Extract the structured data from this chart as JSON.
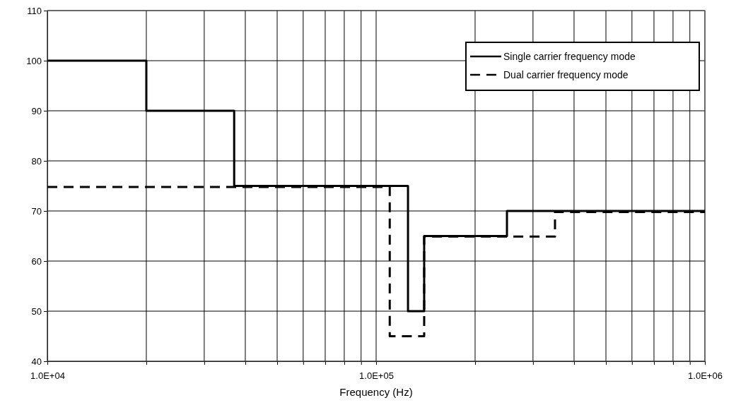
{
  "chart_data": {
    "type": "step",
    "xlabel": "Frequency (Hz)",
    "log": "x",
    "grid": true,
    "legend": "top right",
    "marker": "none",
    "xlim": [
      10000,
      1000000
    ],
    "xticks": [
      {
        "value": 10000,
        "label": "1.0E+04"
      },
      {
        "value": 20000,
        "label": null
      },
      {
        "value": 30000,
        "label": null
      },
      {
        "value": 40000,
        "label": null
      },
      {
        "value": 50000,
        "label": null
      },
      {
        "value": 60000,
        "label": null
      },
      {
        "value": 70000,
        "label": null
      },
      {
        "value": 80000,
        "label": null
      },
      {
        "value": 90000,
        "label": null
      },
      {
        "value": 100000,
        "label": "1.0E+05"
      },
      {
        "value": 200000,
        "label": null
      },
      {
        "value": 300000,
        "label": null
      },
      {
        "value": 400000,
        "label": null
      },
      {
        "value": 500000,
        "label": null
      },
      {
        "value": 600000,
        "label": null
      },
      {
        "value": 700000,
        "label": null
      },
      {
        "value": 800000,
        "label": null
      },
      {
        "value": 900000,
        "label": null
      },
      {
        "value": 1000000,
        "label": "1.0E+06"
      }
    ],
    "ylim": [
      40,
      110
    ],
    "yticks": [
      40,
      50,
      60,
      70,
      80,
      90,
      100,
      110
    ],
    "series": [
      {
        "name": "Single carrier frequency mode",
        "color": "#000000",
        "line_style": "solid",
        "x": [
          10000,
          20000,
          37000,
          125000,
          140000,
          250000,
          1000000
        ],
        "values": [
          100,
          90,
          75,
          50,
          65,
          70,
          70
        ]
      },
      {
        "name": "Dual carrier frequency mode",
        "color": "#000000",
        "line_style": "dashed",
        "x": [
          10000,
          110000,
          140000,
          350000,
          1000000
        ],
        "values": [
          74.8,
          45,
          64.9,
          69.8,
          69.8
        ]
      }
    ]
  }
}
